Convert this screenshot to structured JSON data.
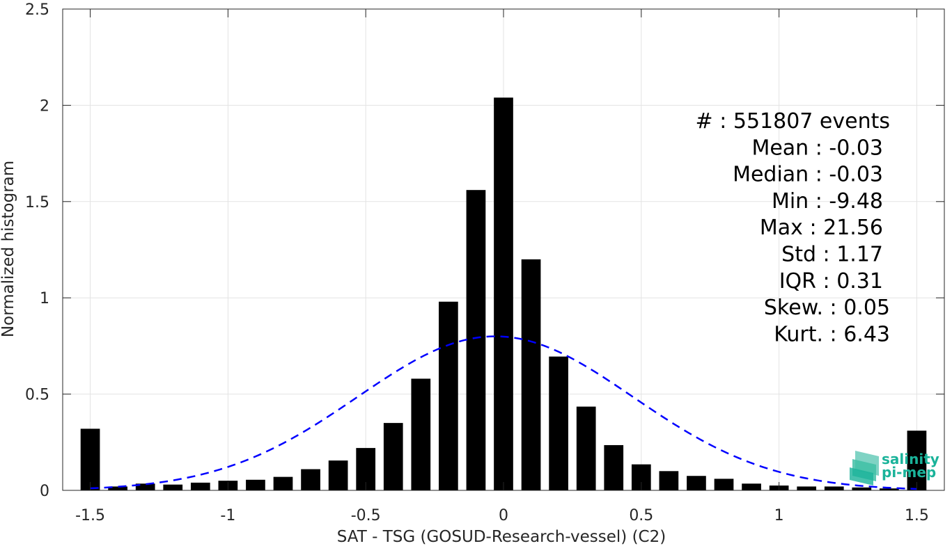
{
  "chart_data": {
    "type": "bar",
    "xlabel": "SAT - TSG (GOSUD-Research-vessel) (C2)",
    "ylabel": "Normalized histogram",
    "xlim": [
      -1.6,
      1.6
    ],
    "ylim": [
      0,
      2.5
    ],
    "x_ticks": [
      -1.5,
      -1,
      -0.5,
      0,
      0.5,
      1,
      1.5
    ],
    "x_tick_labels": [
      "-1.5",
      "-1",
      "-0.5",
      "0",
      "0.5",
      "1",
      "1.5"
    ],
    "y_ticks": [
      0,
      0.5,
      1,
      1.5,
      2,
      2.5
    ],
    "y_tick_labels": [
      "0",
      "0.5",
      "1",
      "1.5",
      "2",
      "2.5"
    ],
    "grid": true,
    "bar_width": 0.07,
    "bars": {
      "x": [
        -1.5,
        -1.4,
        -1.3,
        -1.2,
        -1.1,
        -1.0,
        -0.9,
        -0.8,
        -0.7,
        -0.6,
        -0.5,
        -0.4,
        -0.3,
        -0.2,
        -0.1,
        0.0,
        0.1,
        0.2,
        0.3,
        0.4,
        0.5,
        0.6,
        0.7,
        0.8,
        0.9,
        1.0,
        1.1,
        1.2,
        1.3,
        1.4,
        1.5
      ],
      "values": [
        0.32,
        0.02,
        0.035,
        0.03,
        0.04,
        0.05,
        0.055,
        0.07,
        0.11,
        0.155,
        0.22,
        0.35,
        0.58,
        0.98,
        1.56,
        2.04,
        1.2,
        0.695,
        0.435,
        0.235,
        0.135,
        0.1,
        0.075,
        0.06,
        0.035,
        0.025,
        0.02,
        0.02,
        0.015,
        0.01,
        0.31
      ],
      "color": "#000000"
    },
    "fit_curve": {
      "style": "dashed",
      "color": "#0000ff",
      "mean": -0.03,
      "peak": 0.8,
      "sigma": 0.5
    },
    "annotations": [
      "#  : 551807 events",
      "Mean : -0.03",
      "Median : -0.03",
      "Min : -9.48",
      "Max : 21.56",
      "Std : 1.17",
      "IQR : 0.31",
      "Skew. : 0.05",
      "Kurt. : 6.43"
    ]
  },
  "logo": {
    "line1": "salinity",
    "line2": "pi-mep",
    "icon": "salinity-wave-icon",
    "color": "#1ab39a"
  }
}
